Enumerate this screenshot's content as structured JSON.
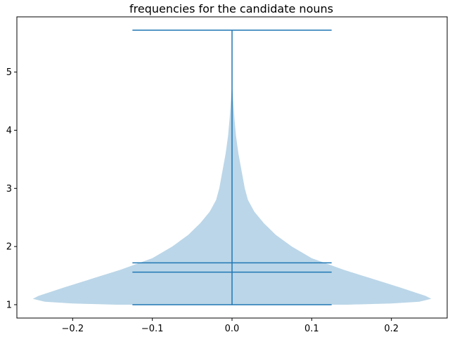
{
  "chart_data": {
    "type": "violin",
    "title": "frequencies for the candidate nouns",
    "xlabel": "",
    "ylabel": "",
    "xlim": [
      -0.27,
      0.27
    ],
    "ylim": [
      0.77,
      5.95
    ],
    "x_ticks": [
      {
        "value": -0.2,
        "label": "−0.2"
      },
      {
        "value": -0.1,
        "label": "−0.1"
      },
      {
        "value": 0.0,
        "label": "0.0"
      },
      {
        "value": 0.1,
        "label": "0.1"
      },
      {
        "value": 0.2,
        "label": "0.2"
      }
    ],
    "y_ticks": [
      {
        "value": 1,
        "label": "1"
      },
      {
        "value": 2,
        "label": "2"
      },
      {
        "value": 3,
        "label": "3"
      },
      {
        "value": 4,
        "label": "4"
      },
      {
        "value": 5,
        "label": "5"
      }
    ],
    "violin": {
      "position": 0.0,
      "body_color": "#1f77b4",
      "body_opacity": 0.3,
      "line_color": "#1f77b4",
      "min": 1.0,
      "max": 5.72,
      "mean": 1.72,
      "median": 1.56,
      "cap_halfwidth": 0.125,
      "profile": [
        {
          "y": 1.0,
          "w": 0.145
        },
        {
          "y": 1.02,
          "w": 0.2
        },
        {
          "y": 1.05,
          "w": 0.235
        },
        {
          "y": 1.1,
          "w": 0.25
        },
        {
          "y": 1.15,
          "w": 0.243
        },
        {
          "y": 1.2,
          "w": 0.232
        },
        {
          "y": 1.3,
          "w": 0.21
        },
        {
          "y": 1.45,
          "w": 0.175
        },
        {
          "y": 1.6,
          "w": 0.14
        },
        {
          "y": 1.8,
          "w": 0.1
        },
        {
          "y": 2.0,
          "w": 0.075
        },
        {
          "y": 2.2,
          "w": 0.055
        },
        {
          "y": 2.4,
          "w": 0.04
        },
        {
          "y": 2.6,
          "w": 0.028
        },
        {
          "y": 2.8,
          "w": 0.02
        },
        {
          "y": 3.0,
          "w": 0.016
        },
        {
          "y": 3.3,
          "w": 0.012
        },
        {
          "y": 3.6,
          "w": 0.008
        },
        {
          "y": 3.9,
          "w": 0.005
        },
        {
          "y": 4.2,
          "w": 0.003
        },
        {
          "y": 4.5,
          "w": 0.0015
        },
        {
          "y": 4.8,
          "w": 0.0
        }
      ]
    }
  }
}
